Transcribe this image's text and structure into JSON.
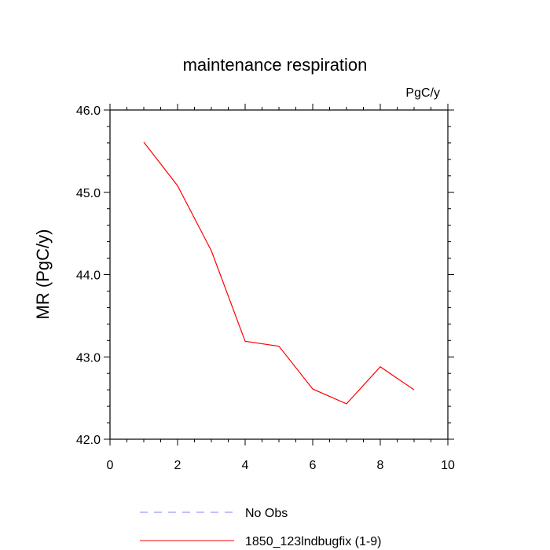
{
  "chart_data": {
    "type": "line",
    "title": "maintenance respiration",
    "units_label": "PgC/y",
    "ylabel": "MR  (PgC/y)",
    "xlabel": "",
    "xlim": [
      0,
      10
    ],
    "ylim": [
      42.0,
      46.0
    ],
    "xticks": [
      0,
      2,
      4,
      6,
      8,
      10
    ],
    "xtick_labels": [
      "0",
      "2",
      "4",
      "6",
      "8",
      "10"
    ],
    "yticks": [
      42.0,
      43.0,
      44.0,
      45.0,
      46.0
    ],
    "ytick_labels": [
      "42.0",
      "43.0",
      "44.0",
      "45.0",
      "46.0"
    ],
    "grid": false,
    "legend_position": "bottom",
    "series": [
      {
        "name": "1850_123lndbugfix (1-9)",
        "color": "#ff0000",
        "style": "solid",
        "x": [
          1,
          2,
          3,
          4,
          5,
          6,
          7,
          8,
          9
        ],
        "y": [
          45.61,
          45.08,
          44.29,
          43.19,
          43.13,
          42.61,
          42.43,
          42.88,
          42.6
        ]
      },
      {
        "name": "No Obs",
        "color": "#8080ff",
        "style": "dashed",
        "x": [],
        "y": []
      }
    ]
  }
}
